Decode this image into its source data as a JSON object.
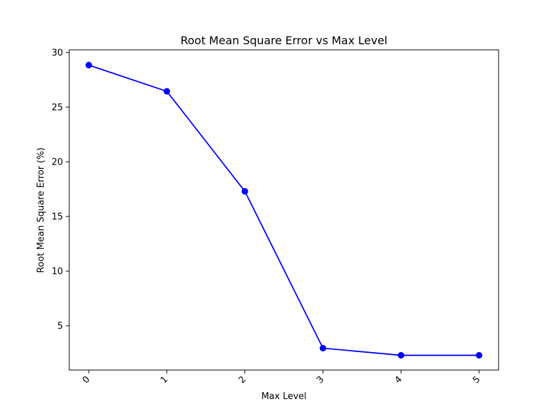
{
  "chart_data": {
    "type": "line",
    "title": "Root Mean Square Error vs Max Level",
    "xlabel": "Max Level",
    "ylabel": "Root Mean Square Error (%)",
    "x": [
      0,
      1,
      2,
      3,
      4,
      5
    ],
    "x_tick_labels": [
      "0",
      "1",
      "2",
      "3",
      "4",
      "5"
    ],
    "y_ticks": [
      5,
      10,
      15,
      20,
      25,
      30
    ],
    "y_tick_labels": [
      "5",
      "10",
      "15",
      "20",
      "25",
      "30"
    ],
    "xlim": [
      -0.25,
      5.25
    ],
    "ylim": [
      0.95,
      30.25
    ],
    "grid": false,
    "series": [
      {
        "values": [
          28.85,
          26.45,
          17.3,
          2.95,
          2.3,
          2.3
        ],
        "color": "#0000ff",
        "marker": "circle"
      }
    ]
  }
}
